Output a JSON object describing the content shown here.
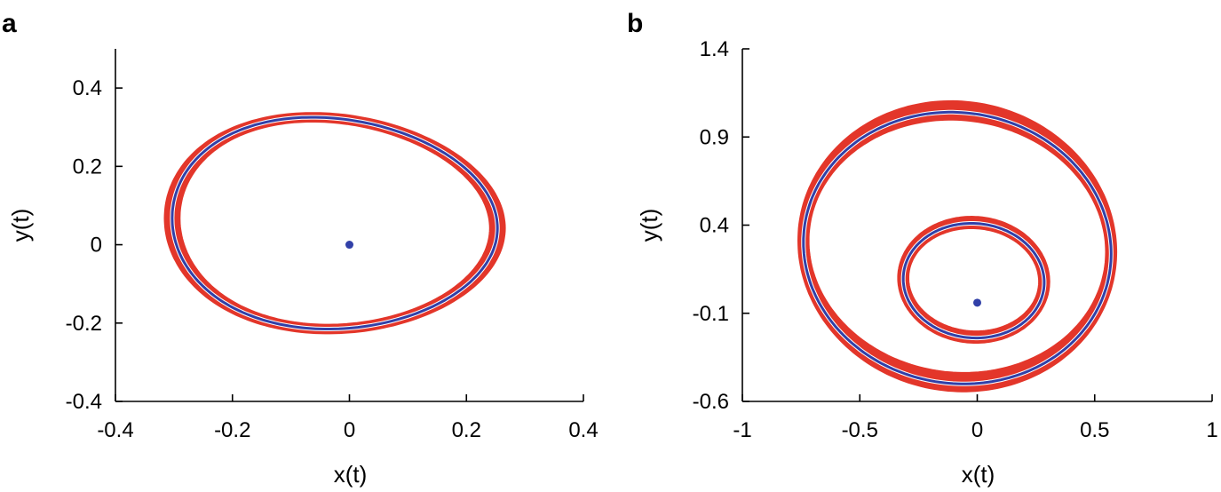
{
  "chart_data": [
    {
      "type": "line",
      "panel": "a",
      "xlabel": "x(t)",
      "ylabel": "y(t)",
      "xlim": [
        -0.4,
        0.4
      ],
      "ylim": [
        -0.4,
        0.5
      ],
      "xticks": [
        "-0.4",
        "-0.2",
        "0",
        "0.2",
        "0.4"
      ],
      "yticks": [
        "-0.4",
        "-0.2",
        "0",
        "0.2",
        "0.4"
      ],
      "xtick_values": [
        -0.4,
        -0.2,
        0,
        0.2,
        0.4
      ],
      "ytick_values": [
        -0.4,
        -0.2,
        0,
        0.2,
        0.4
      ],
      "grid": false,
      "limit_cycles": [
        {
          "role": "transient",
          "color": "#e3362a",
          "cx": -0.025,
          "cy": 0.055,
          "rx": 0.278,
          "ry": 0.27,
          "alpha": -0.13,
          "shiftx": -0.025,
          "band_dx": 0.012,
          "band_dy": 0.01
        },
        {
          "role": "cycle",
          "color": "#3140a8",
          "cx": -0.025,
          "cy": 0.055,
          "rx": 0.278,
          "ry": 0.27,
          "alpha": -0.13,
          "shiftx": -0.025
        }
      ],
      "equilibrium": {
        "x": 0,
        "y": 0,
        "color": "#3140a8"
      }
    },
    {
      "type": "line",
      "panel": "b",
      "xlabel": "x(t)",
      "ylabel": "y(t)",
      "xlim": [
        -1,
        1
      ],
      "ylim": [
        -0.6,
        1.4
      ],
      "xticks": [
        "-1",
        "-0.5",
        "0",
        "0.5",
        "1"
      ],
      "yticks": [
        "-0.6",
        "-0.1",
        "0.4",
        "0.9",
        "1.4"
      ],
      "xtick_values": [
        -1,
        -0.5,
        0,
        0.5,
        1
      ],
      "ytick_values": [
        -0.6,
        -0.1,
        0.4,
        0.9,
        1.4
      ],
      "grid": false,
      "limit_cycles": [
        {
          "role": "transient",
          "color": "#e3362a",
          "cx": -0.085,
          "cy": 0.28,
          "rx": 0.655,
          "ry": 0.77,
          "alpha": -0.14,
          "shiftx": 0.0,
          "band_dx": 0.02,
          "band_dy": 0.05
        },
        {
          "role": "cycle",
          "color": "#3140a8",
          "cx": -0.085,
          "cy": 0.27,
          "rx": 0.655,
          "ry": 0.77,
          "alpha": -0.14,
          "shiftx": 0.0
        },
        {
          "role": "transient",
          "color": "#e3362a",
          "cx": -0.015,
          "cy": 0.09,
          "rx": 0.3,
          "ry": 0.325,
          "alpha": -0.1,
          "shiftx": 0.0,
          "band_dx": 0.02,
          "band_dy": 0.03
        },
        {
          "role": "cycle",
          "color": "#3140a8",
          "cx": -0.015,
          "cy": 0.085,
          "rx": 0.3,
          "ry": 0.325,
          "alpha": -0.1,
          "shiftx": 0.0
        }
      ],
      "equilibrium": {
        "x": 0,
        "y": -0.04,
        "color": "#3140a8"
      }
    }
  ],
  "panels": [
    {
      "letter": "a"
    },
    {
      "letter": "b"
    }
  ]
}
